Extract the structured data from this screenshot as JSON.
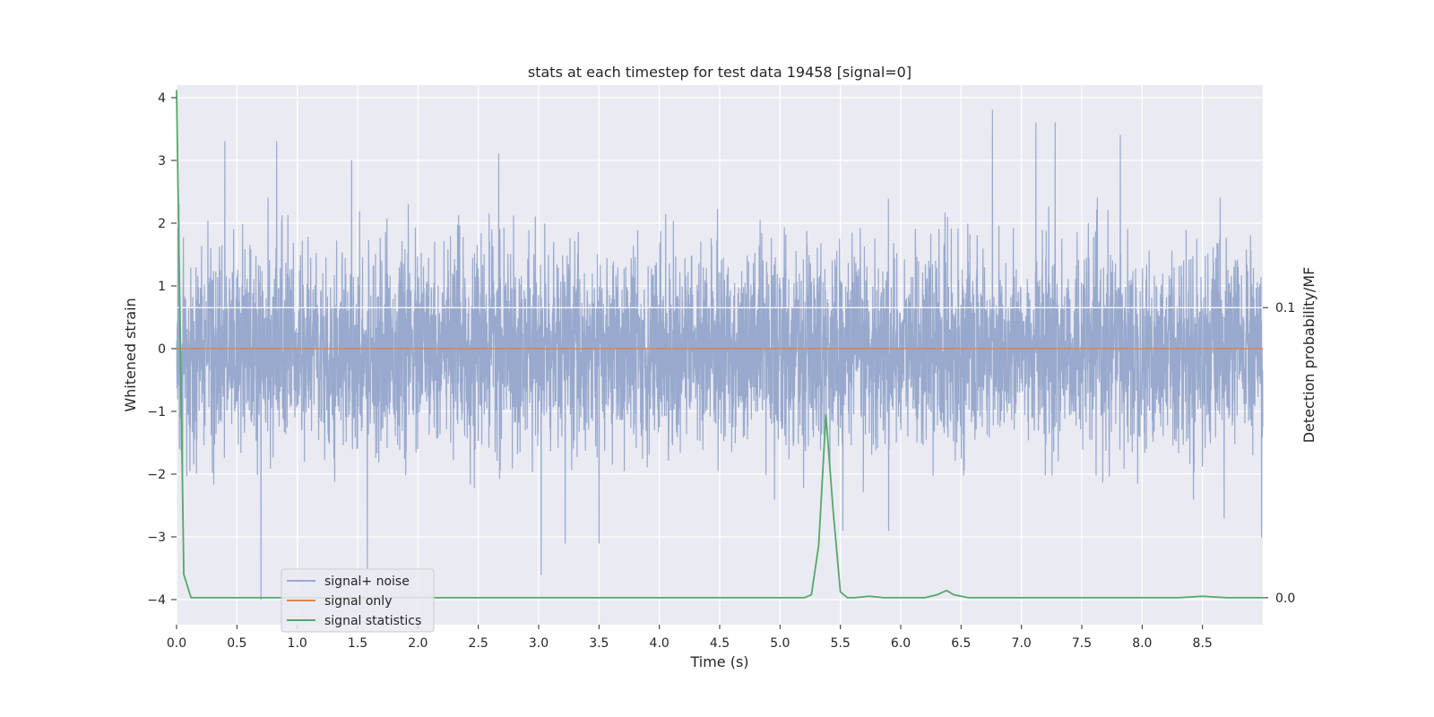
{
  "chart_data": {
    "type": "line",
    "title": "stats at each timestep for test data 19458 [signal=0]",
    "xlabel": "Time (s)",
    "ylabel": "Whitened strain",
    "y2label": "Detection probability/MF",
    "xlim": [
      0.0,
      9.0
    ],
    "ylim": [
      -4.4,
      4.2
    ],
    "y2lim": [
      -0.0093,
      0.1767
    ],
    "xticks": [
      0.0,
      0.5,
      1.0,
      1.5,
      2.0,
      2.5,
      3.0,
      3.5,
      4.0,
      4.5,
      5.0,
      5.5,
      6.0,
      6.5,
      7.0,
      7.5,
      8.0,
      8.5
    ],
    "xtick_labels": [
      "0.0",
      "0.5",
      "1.0",
      "1.5",
      "2.0",
      "2.5",
      "3.0",
      "3.5",
      "4.0",
      "4.5",
      "5.0",
      "5.5",
      "6.0",
      "6.5",
      "7.0",
      "7.5",
      "8.0",
      "8.5"
    ],
    "yticks": [
      4,
      3,
      2,
      1,
      0,
      -1,
      -2,
      -3,
      -4
    ],
    "ytick_labels": [
      "4",
      "3",
      "2",
      "1",
      "0",
      "−1",
      "−2",
      "−3",
      "−4"
    ],
    "y2ticks": [
      0.1,
      0.0
    ],
    "y2tick_labels": [
      "0.1",
      "0.0"
    ],
    "grid": true,
    "legend_position": "lower-left",
    "series": [
      {
        "name": "signal+ noise",
        "color": "#98a9cd",
        "axis": "left",
        "noise_std": 0.95,
        "peaks": [
          [
            0.02,
            2.3
          ],
          [
            0.05,
            -2.7
          ],
          [
            0.4,
            3.3
          ],
          [
            0.7,
            -4.0
          ],
          [
            0.83,
            3.3
          ],
          [
            1.45,
            3.0
          ],
          [
            1.58,
            -3.5
          ],
          [
            2.67,
            3.1
          ],
          [
            3.02,
            -3.6
          ],
          [
            3.22,
            -3.1
          ],
          [
            3.5,
            -3.1
          ],
          [
            5.52,
            -2.9
          ],
          [
            5.9,
            -2.9
          ],
          [
            6.76,
            3.8
          ],
          [
            7.12,
            3.6
          ],
          [
            7.28,
            3.6
          ],
          [
            7.82,
            3.4
          ],
          [
            8.68,
            -2.7
          ],
          [
            8.99,
            -3.0
          ]
        ]
      },
      {
        "name": "signal only",
        "color": "#dd8452",
        "axis": "left",
        "constant": 0.0
      },
      {
        "name": "signal statistics",
        "color": "#55a868",
        "axis": "right",
        "x": [
          0.0,
          0.06,
          0.12,
          0.18,
          0.24,
          0.3,
          5.1,
          5.2,
          5.26,
          5.32,
          5.38,
          5.44,
          5.5,
          5.56,
          5.62,
          5.74,
          5.86,
          6.2,
          6.3,
          6.38,
          6.44,
          6.56,
          6.7,
          8.3,
          8.5,
          8.7,
          9.0
        ],
        "y": [
          0.175,
          0.008,
          0.0,
          0.0,
          0.0,
          0.0,
          0.0,
          0.0,
          0.001,
          0.018,
          0.063,
          0.03,
          0.002,
          0.0,
          0.0,
          0.0005,
          0.0,
          0.0,
          0.001,
          0.0025,
          0.001,
          0.0,
          0.0,
          0.0,
          0.0005,
          0.0,
          0.0
        ]
      }
    ]
  }
}
